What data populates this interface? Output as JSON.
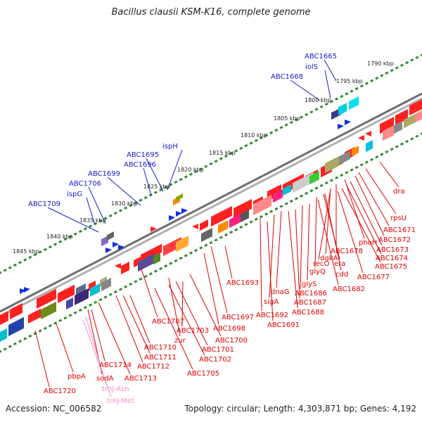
{
  "title": "Bacillus clausii KSM-K16, complete genome",
  "footer": {
    "accession": "Accession: NC_006582",
    "topology": "Topology: circular; Length: 4,303,871 bp; Genes: 4,192"
  },
  "colors": {
    "background": "#ffffff",
    "backbone": "#8a8a8a",
    "tick": "#2e8b2e",
    "gene_label_outer": "#1a1acc",
    "gene_label_inner": "#e00000",
    "trna_label": "#ff88cc",
    "cds_forward": "#ff2020",
    "cds_reverse": "#ff2020"
  },
  "scale_labels": [
    "1790 kbp",
    "1795 kbp",
    "1800 kbp",
    "1805 kbp",
    "1810 kbp",
    "1815 kbp",
    "1820 kbp",
    "1825 kbp",
    "1830 kbp",
    "1835 kbp",
    "1840 kbp",
    "1845 kbp"
  ],
  "outer_labels": [
    "ABC1665",
    "iolS",
    "ABC1668",
    "ispH",
    "ABC1695",
    "ABC1696",
    "ABC1699",
    "ABC1706",
    "ispG",
    "ABC1709"
  ],
  "inner_labels": [
    "dra",
    "rpsU",
    "ABC1671",
    "ABC1672",
    "phoH",
    "ABC1673",
    "ABC1674",
    "ABC1678",
    "ABC1675",
    "recO",
    "dgkA",
    "ABC1677",
    "cdd",
    "glyQ",
    "era",
    "ABC1682",
    "glyS",
    "ABC1686",
    "ABC1693",
    "dnaG",
    "ABC1687",
    "sigA",
    "ABC1688",
    "ABC1692",
    "ABC1691",
    "ABC1697",
    "ABC1698",
    "ABC1707",
    "ABC1703",
    "ABC1700",
    "zur",
    "ABC1701",
    "ABC1702",
    "ABC1710",
    "ABC1711",
    "ABC1712",
    "ABC1705",
    "ABC1714",
    "sodA",
    "ABC1713",
    "pbpA",
    "ABC1720"
  ],
  "trna_labels": [
    "trnJ-Asn",
    "trnJ-Met"
  ]
}
